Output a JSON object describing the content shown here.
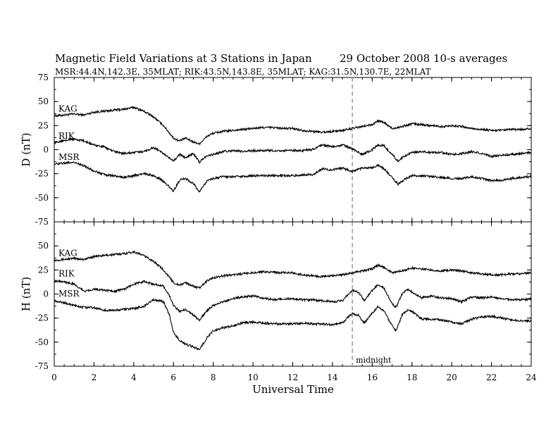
{
  "header": {
    "title": "Magnetic Field Variations at 3 Stations in Japan",
    "date": "29 October 2008",
    "averages": "10-s averages",
    "stations": "MSR:44.4N,142.3E, 35MLAT;  RIK:43.5N,143.8E, 35MLAT;  KAG:31.5N,130.7E, 22MLAT"
  },
  "chart_data": {
    "type": "line",
    "xlabel": "Universal Time",
    "xlim": [
      0,
      24
    ],
    "xticks": [
      0,
      2,
      4,
      6,
      8,
      10,
      12,
      14,
      16,
      18,
      20,
      22,
      24
    ],
    "grid": false,
    "annotation": {
      "text": "midnight",
      "x": 15,
      "style": "dashed vertical line"
    },
    "panels": [
      {
        "name": "D",
        "ylabel": "D (nT)",
        "ylim": [
          -75,
          75
        ],
        "yticks": [
          -75,
          -50,
          -25,
          0,
          25,
          50,
          75
        ],
        "series": [
          {
            "name": "KAG",
            "x": [
              0,
              0.5,
              1,
              1.5,
              2,
              2.5,
              3,
              3.5,
              4,
              4.5,
              5,
              5.5,
              6,
              6.3,
              6.6,
              7,
              7.3,
              7.7,
              8,
              8.5,
              9,
              9.5,
              10,
              10.5,
              11,
              11.5,
              12,
              12.5,
              13,
              13.5,
              14,
              14.5,
              15,
              15.5,
              16,
              16.3,
              16.6,
              17,
              17.5,
              18,
              18.5,
              19,
              19.5,
              20,
              20.5,
              21,
              21.5,
              22,
              22.5,
              23,
              23.5,
              24
            ],
            "y": [
              35,
              36,
              37,
              36,
              39,
              40,
              41,
              42,
              44,
              40,
              34,
              25,
              12,
              9,
              12,
              8,
              6,
              14,
              17,
              19,
              20,
              21,
              22,
              23,
              23,
              22,
              22,
              20,
              19,
              18,
              19,
              20,
              22,
              24,
              26,
              30,
              28,
              22,
              24,
              27,
              26,
              25,
              24,
              25,
              24,
              22,
              21,
              20,
              20,
              21,
              21,
              22
            ]
          },
          {
            "name": "RIK",
            "x": [
              0,
              0.5,
              1,
              1.5,
              2,
              2.5,
              3,
              3.5,
              4,
              4.5,
              5,
              5.3,
              5.6,
              6,
              6.3,
              6.6,
              7,
              7.3,
              7.7,
              8,
              8.5,
              9,
              9.5,
              10,
              10.5,
              11,
              11.5,
              12,
              12.5,
              13,
              13.5,
              14,
              14.5,
              15,
              15.5,
              16,
              16.3,
              16.6,
              17,
              17.3,
              17.6,
              18,
              18.5,
              19,
              19.5,
              20,
              20.5,
              21,
              21.5,
              22,
              22.5,
              23,
              23.5,
              24
            ],
            "y": [
              7,
              10,
              11,
              9,
              5,
              3,
              -2,
              -4,
              -3,
              -2,
              2,
              -1,
              -6,
              -12,
              -5,
              -8,
              -4,
              -13,
              -6,
              -5,
              -2,
              -1,
              -2,
              -1,
              -1,
              -1,
              -1,
              -1,
              -1,
              0,
              5,
              3,
              5,
              1,
              -5,
              0,
              5,
              4,
              -5,
              -12,
              -7,
              -3,
              -2,
              -3,
              -3,
              -5,
              -4,
              -2,
              -4,
              -7,
              -6,
              -5,
              -4,
              -3
            ]
          },
          {
            "name": "MSR",
            "x": [
              0,
              0.5,
              1,
              1.5,
              2,
              2.5,
              3,
              3.5,
              4,
              4.5,
              5,
              5.3,
              5.6,
              6,
              6.3,
              6.6,
              7,
              7.3,
              7.7,
              8,
              8.5,
              9,
              9.5,
              10,
              10.5,
              11,
              11.5,
              12,
              12.5,
              13,
              13.5,
              14,
              14.5,
              15,
              15.5,
              16,
              16.3,
              16.6,
              17,
              17.3,
              17.6,
              18,
              18.5,
              19,
              19.5,
              20,
              20.5,
              21,
              21.5,
              22,
              22.5,
              23,
              23.5,
              24
            ],
            "y": [
              -15,
              -14,
              -13,
              -17,
              -22,
              -26,
              -27,
              -29,
              -27,
              -25,
              -27,
              -30,
              -35,
              -43,
              -32,
              -30,
              -35,
              -44,
              -32,
              -30,
              -28,
              -28,
              -28,
              -27,
              -27,
              -27,
              -27,
              -27,
              -26,
              -26,
              -20,
              -21,
              -19,
              -23,
              -19,
              -19,
              -16,
              -20,
              -29,
              -36,
              -31,
              -27,
              -27,
              -28,
              -29,
              -30,
              -30,
              -28,
              -30,
              -32,
              -32,
              -30,
              -29,
              -28
            ]
          }
        ]
      },
      {
        "name": "H",
        "ylabel": "H (nT)",
        "ylim": [
          -75,
          75
        ],
        "yticks": [
          -75,
          -50,
          -25,
          0,
          25,
          50,
          75
        ],
        "series": [
          {
            "name": "KAG",
            "x": [
              0,
              0.5,
              1,
              1.5,
              2,
              2.5,
              3,
              3.5,
              4,
              4.5,
              5,
              5.5,
              6,
              6.3,
              6.6,
              7,
              7.3,
              7.7,
              8,
              8.5,
              9,
              9.5,
              10,
              10.5,
              11,
              11.5,
              12,
              12.5,
              13,
              13.5,
              14,
              14.5,
              15,
              15.5,
              16,
              16.3,
              16.6,
              17,
              17.5,
              18,
              18.5,
              19,
              19.5,
              20,
              20.5,
              21,
              21.5,
              22,
              22.5,
              23,
              23.5,
              24
            ],
            "y": [
              35,
              36,
              37,
              36,
              39,
              40,
              41,
              42,
              44,
              40,
              34,
              25,
              12,
              9,
              12,
              8,
              6,
              14,
              17,
              19,
              20,
              21,
              22,
              23,
              23,
              22,
              22,
              20,
              19,
              18,
              19,
              20,
              22,
              24,
              26,
              30,
              28,
              22,
              24,
              27,
              26,
              25,
              24,
              25,
              24,
              22,
              21,
              20,
              20,
              21,
              21,
              22
            ]
          },
          {
            "name": "RIK",
            "x": [
              0,
              0.5,
              1,
              1.5,
              2,
              2.5,
              3,
              3.5,
              4,
              4.5,
              5,
              5.5,
              5.8,
              6,
              6.3,
              6.6,
              7,
              7.3,
              7.7,
              8,
              8.5,
              9,
              9.5,
              10,
              10.5,
              11,
              11.5,
              12,
              12.5,
              13,
              13.5,
              14,
              14.5,
              15,
              15.3,
              15.6,
              16,
              16.3,
              16.6,
              17,
              17.2,
              17.5,
              17.8,
              18,
              18.5,
              19,
              19.5,
              20,
              20.5,
              21,
              21.5,
              22,
              22.5,
              23,
              23.5,
              24
            ],
            "y": [
              14,
              13,
              10,
              3,
              5,
              4,
              3,
              5,
              10,
              13,
              10,
              8,
              -2,
              -12,
              -18,
              -16,
              -22,
              -27,
              -17,
              -12,
              -8,
              -5,
              -3,
              -2,
              -4,
              -6,
              -5,
              -5,
              -6,
              -6,
              -7,
              -8,
              -7,
              4,
              2,
              -7,
              4,
              10,
              6,
              -10,
              -14,
              0,
              5,
              2,
              -4,
              -2,
              -4,
              -5,
              -8,
              -3,
              -4,
              -3,
              -5,
              -6,
              -6,
              -5
            ]
          },
          {
            "name": "MSR",
            "x": [
              0,
              0.5,
              1,
              1.5,
              2,
              2.5,
              3,
              3.5,
              4,
              4.5,
              5,
              5.5,
              5.8,
              6,
              6.3,
              6.6,
              7,
              7.3,
              7.7,
              8,
              8.5,
              9,
              9.5,
              10,
              10.5,
              11,
              11.5,
              12,
              12.5,
              13,
              13.5,
              14,
              14.5,
              15,
              15.3,
              15.6,
              16,
              16.3,
              16.6,
              17,
              17.2,
              17.5,
              17.8,
              18,
              18.5,
              19,
              19.5,
              20,
              20.5,
              21,
              21.5,
              22,
              22.5,
              23,
              23.5,
              24
            ],
            "y": [
              -7,
              -9,
              -12,
              -14,
              -14,
              -17,
              -17,
              -16,
              -15,
              -13,
              -6,
              -8,
              -22,
              -40,
              -48,
              -52,
              -55,
              -58,
              -45,
              -38,
              -35,
              -33,
              -30,
              -29,
              -30,
              -31,
              -31,
              -31,
              -30,
              -31,
              -31,
              -32,
              -30,
              -20,
              -22,
              -30,
              -20,
              -13,
              -18,
              -33,
              -38,
              -22,
              -16,
              -18,
              -26,
              -26,
              -27,
              -29,
              -31,
              -26,
              -24,
              -23,
              -25,
              -27,
              -28,
              -28
            ]
          }
        ]
      }
    ]
  }
}
